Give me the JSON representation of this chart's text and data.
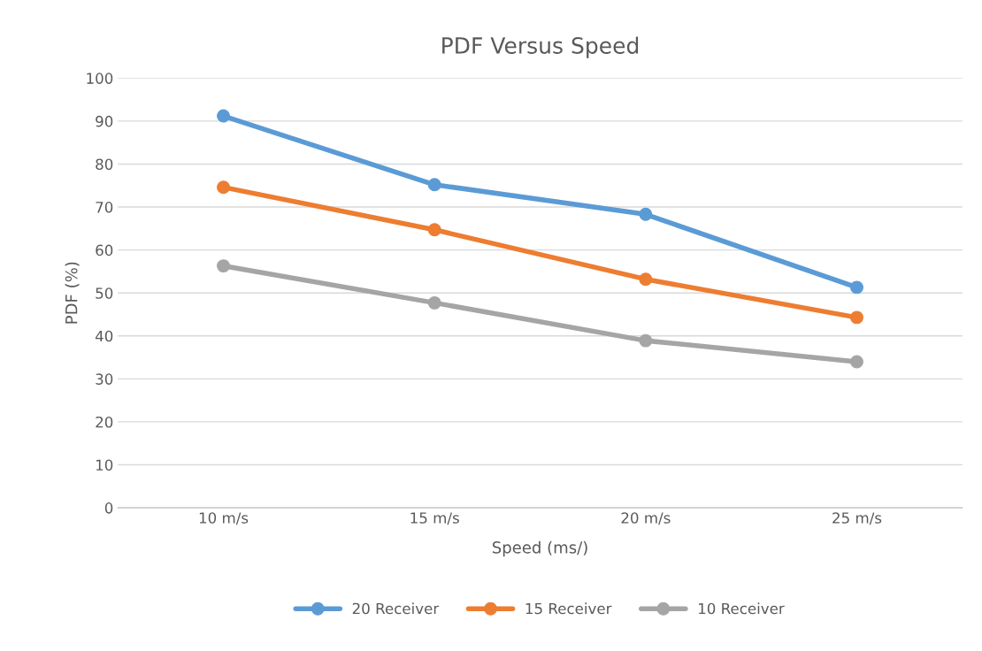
{
  "chart_data": {
    "type": "line",
    "title": "PDF Versus Speed",
    "xlabel": "Speed (ms/)",
    "ylabel": "PDF (%)",
    "categories": [
      "10 m/s",
      "15 m/s",
      "20 m/s",
      "25 m/s"
    ],
    "series": [
      {
        "name": "20 Receiver",
        "color": "#5b9bd5",
        "values": [
          91.2,
          75.2,
          68.3,
          51.3
        ]
      },
      {
        "name": "15 Receiver",
        "color": "#ed7d31",
        "values": [
          74.6,
          64.7,
          53.2,
          44.3
        ]
      },
      {
        "name": "10 Receiver",
        "color": "#a5a5a5",
        "values": [
          56.3,
          47.7,
          38.9,
          34.0
        ]
      }
    ],
    "ylim": [
      0,
      100
    ],
    "yticks": [
      0,
      10,
      20,
      30,
      40,
      50,
      60,
      70,
      80,
      90,
      100
    ],
    "grid": "y",
    "legend": "bottom",
    "marker": "circle",
    "line_style": "solid"
  }
}
